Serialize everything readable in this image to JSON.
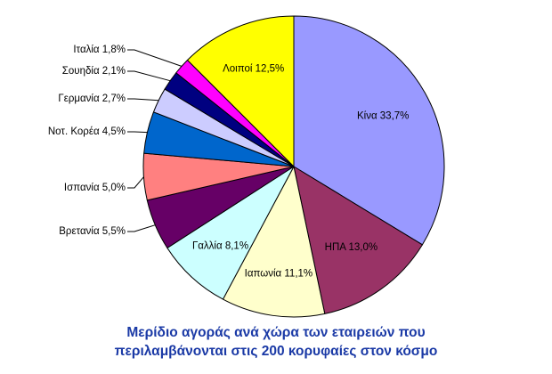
{
  "chart_data": {
    "type": "pie",
    "title": "",
    "slices": [
      {
        "label": "Κίνα 33,7%",
        "name": "Κίνα",
        "value": 33.7,
        "color": "#9999ff"
      },
      {
        "label": "ΗΠΑ 13,0%",
        "name": "ΗΠΑ",
        "value": 13.0,
        "color": "#993366"
      },
      {
        "label": "Ιαπωνία 11,1%",
        "name": "Ιαπωνία",
        "value": 11.1,
        "color": "#ffffcc"
      },
      {
        "label": "Γαλλία 8,1%",
        "name": "Γαλλία",
        "value": 8.1,
        "color": "#ccffff"
      },
      {
        "label": "Βρετανία 5,5%",
        "name": "Βρετανία",
        "value": 5.5,
        "color": "#660066"
      },
      {
        "label": "Ισπανία 5,0%",
        "name": "Ισπανία",
        "value": 5.0,
        "color": "#ff8080"
      },
      {
        "label": "Νοτ. Κορέα 4,5%",
        "name": "Νοτ. Κορέα",
        "value": 4.5,
        "color": "#0066cc"
      },
      {
        "label": "Γερμανία 2,7%",
        "name": "Γερμανία",
        "value": 2.7,
        "color": "#ccccff"
      },
      {
        "label": "Σουηδία 2,1%",
        "name": "Σουηδία",
        "value": 2.1,
        "color": "#000080"
      },
      {
        "label": "Ιταλία 1,8%",
        "name": "Ιταλία",
        "value": 1.8,
        "color": "#ff00ff"
      },
      {
        "label": "Λοιποί 12,5%",
        "name": "Λοιποί",
        "value": 12.5,
        "color": "#ffff00"
      }
    ],
    "start_angle": "12 o'clock",
    "direction": "clockwise",
    "labels_inside": [
      "Κίνα",
      "ΗΠΑ",
      "Ιαπωνία",
      "Γαλλία",
      "Λοιποί"
    ],
    "labels_outside_left": [
      "Βρετανία",
      "Ισπανία",
      "Νοτ. Κορέα",
      "Γερμανία",
      "Σουηδία",
      "Ιταλία"
    ],
    "legend": "none"
  },
  "caption": {
    "line1": "Μερίδιο αγοράς ανά χώρα των εταιρειών που",
    "line2": "περιλαμβάνονται στις 200 κορυφαίες στον κόσμο"
  }
}
